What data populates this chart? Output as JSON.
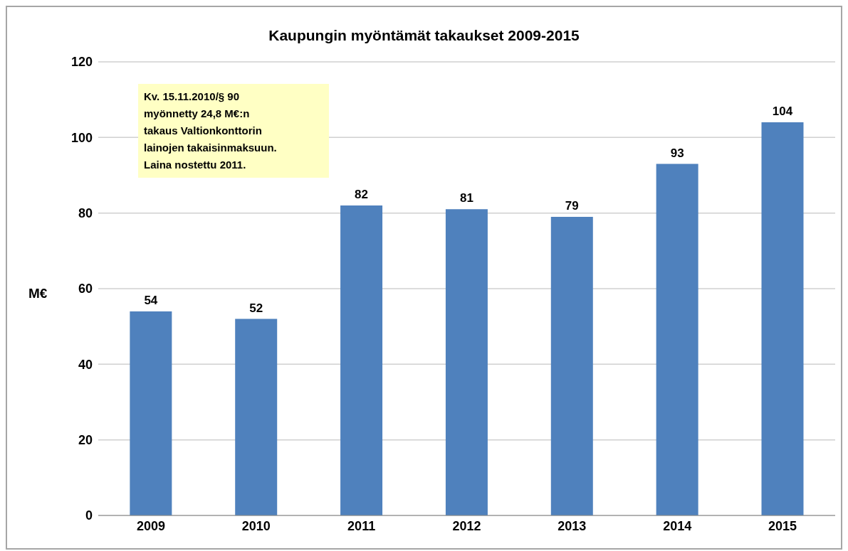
{
  "chart_data": {
    "type": "bar",
    "title": "Kaupungin myöntämät takaukset 2009-2015",
    "ylabel": "M€",
    "categories": [
      "2009",
      "2010",
      "2011",
      "2012",
      "2013",
      "2014",
      "2015"
    ],
    "values": [
      54,
      52,
      82,
      81,
      79,
      93,
      104
    ],
    "color": "#4f81bd",
    "ylim": [
      0,
      120
    ],
    "yticks": [
      0,
      20,
      40,
      60,
      80,
      100,
      120
    ],
    "grid": "y",
    "data_labels": true,
    "annotations": [
      "Kv. 15.11.2010/§ 90\nmyönnetty 24,8 M€:n\ntakaus Valtionkonttorin\nlainojen takaisinmaksuun.\nLaina nostettu 2011."
    ]
  }
}
